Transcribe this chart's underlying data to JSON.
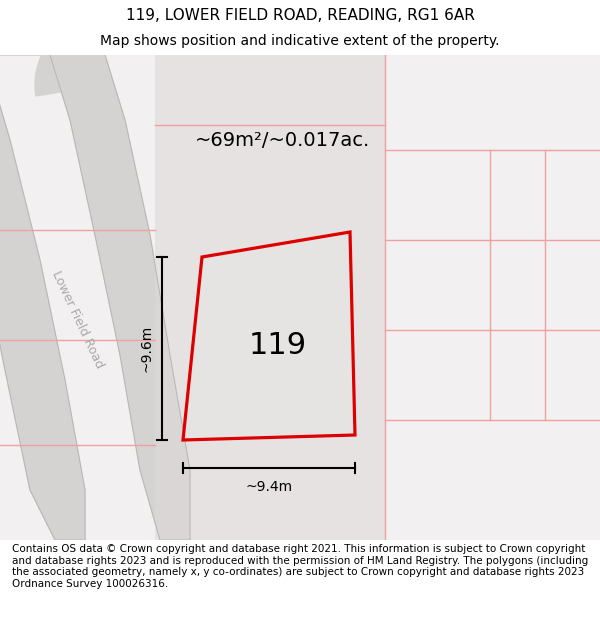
{
  "title_line1": "119, LOWER FIELD ROAD, READING, RG1 6AR",
  "title_line2": "Map shows position and indicative extent of the property.",
  "footer_text": "Contains OS data © Crown copyright and database right 2021. This information is subject to Crown copyright and database rights 2023 and is reproduced with the permission of HM Land Registry. The polygons (including the associated geometry, namely x, y co-ordinates) are subject to Crown copyright and database rights 2023 Ordnance Survey 100026316.",
  "area_label": "~69m²/~0.017ac.",
  "property_number": "119",
  "dim_vertical": "~9.6m",
  "dim_horizontal": "~9.4m",
  "road_label": "Lower Field Road",
  "property_edge": "#dd0000",
  "other_boundary_color": "#f0a0a0",
  "title_fontsize": 11,
  "subtitle_fontsize": 10,
  "footer_fontsize": 7.5,
  "annotation_fontsize": 10,
  "road_label_fontsize": 9,
  "area_label_fontsize": 14,
  "property_number_fontsize": 22,
  "plot_bg": "#f2f0f0"
}
